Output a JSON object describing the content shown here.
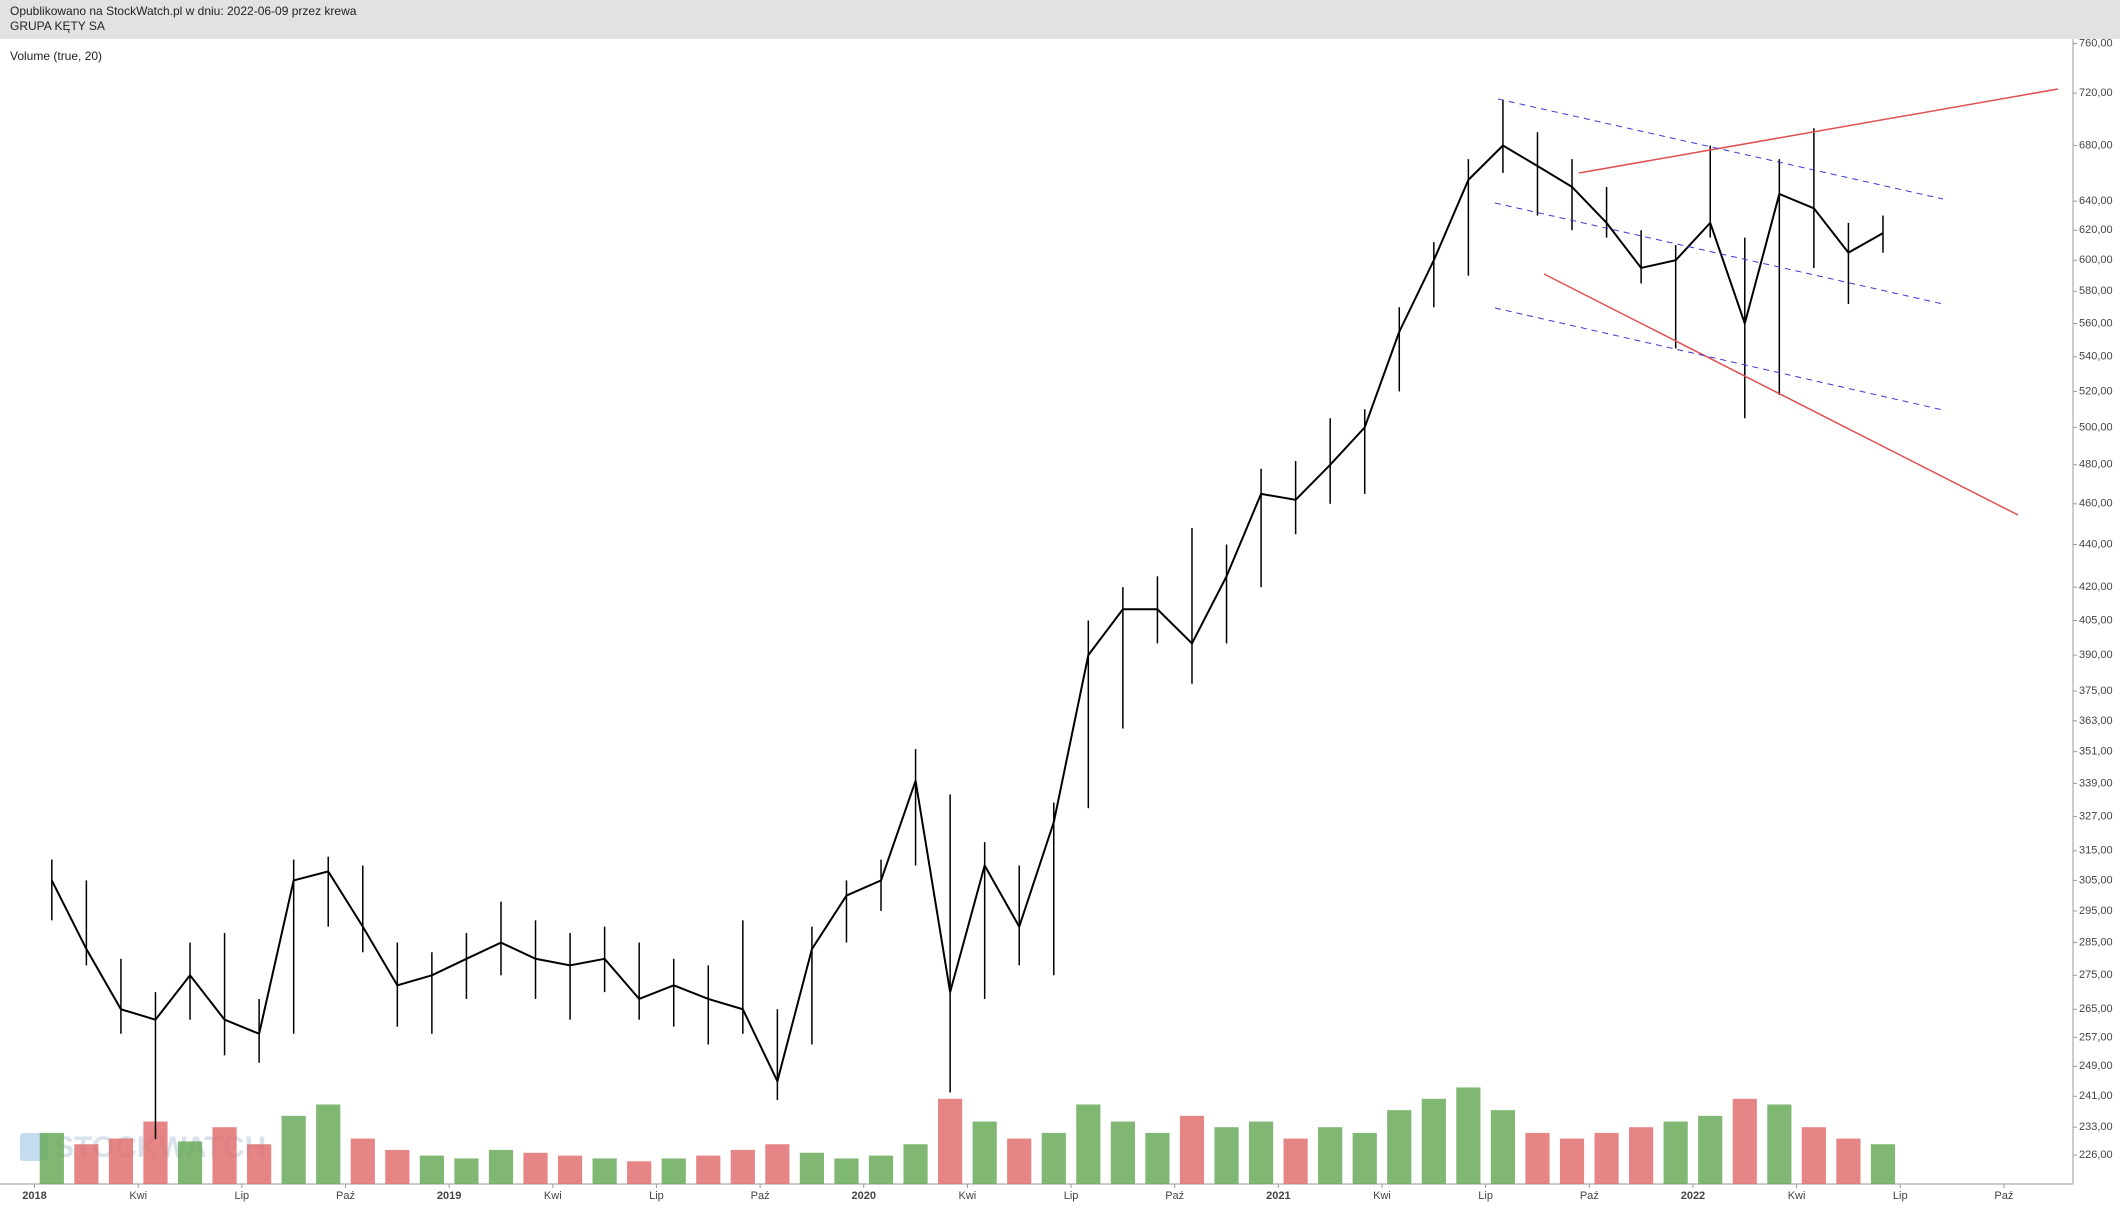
{
  "header": {
    "published": "Opublikowano na StockWatch.pl w dniu: 2022-06-09 przez krewa"
  },
  "chart_data": {
    "type": "ohlc-line",
    "title": "GRUPA KĘTY SA",
    "indicator": "Volume (true, 20)",
    "watermark": "STOCKWATCH",
    "log_scale": true,
    "x": [
      "2018-01",
      "2018-02",
      "2018-03",
      "2018-04",
      "2018-05",
      "2018-06",
      "2018-07",
      "2018-08",
      "2018-09",
      "2018-10",
      "2018-11",
      "2018-12",
      "2019-01",
      "2019-02",
      "2019-03",
      "2019-04",
      "2019-05",
      "2019-06",
      "2019-07",
      "2019-08",
      "2019-09",
      "2019-10",
      "2019-11",
      "2019-12",
      "2020-01",
      "2020-02",
      "2020-03",
      "2020-04",
      "2020-05",
      "2020-06",
      "2020-07",
      "2020-08",
      "2020-09",
      "2020-10",
      "2020-11",
      "2020-12",
      "2021-01",
      "2021-02",
      "2021-03",
      "2021-04",
      "2021-05",
      "2021-06",
      "2021-07",
      "2021-08",
      "2021-09",
      "2021-10",
      "2021-11",
      "2021-12",
      "2022-01",
      "2022-02",
      "2022-03",
      "2022-04",
      "2022-05",
      "2022-06"
    ],
    "values": [
      305,
      283,
      265,
      262,
      275,
      262,
      258,
      305,
      308,
      290,
      272,
      275,
      280,
      285,
      280,
      278,
      280,
      268,
      272,
      268,
      265,
      245,
      283,
      300,
      305,
      340,
      270,
      310,
      290,
      325,
      390,
      410,
      410,
      395,
      425,
      465,
      462,
      480,
      500,
      555,
      600,
      655,
      680,
      665,
      650,
      625,
      595,
      600,
      625,
      560,
      645,
      635,
      605,
      618
    ],
    "high": [
      312,
      305,
      280,
      270,
      285,
      288,
      268,
      312,
      313,
      310,
      285,
      282,
      288,
      298,
      292,
      288,
      290,
      285,
      280,
      278,
      292,
      265,
      290,
      305,
      312,
      352,
      335,
      318,
      310,
      332,
      405,
      420,
      425,
      448,
      440,
      478,
      482,
      505,
      510,
      570,
      612,
      670,
      715,
      690,
      670,
      650,
      620,
      610,
      680,
      615,
      670,
      693,
      625,
      630
    ],
    "low": [
      292,
      278,
      258,
      230,
      262,
      252,
      250,
      258,
      290,
      282,
      260,
      258,
      268,
      275,
      268,
      262,
      270,
      262,
      260,
      255,
      258,
      240,
      255,
      285,
      295,
      310,
      242,
      268,
      278,
      275,
      330,
      360,
      395,
      378,
      395,
      420,
      445,
      460,
      465,
      520,
      570,
      590,
      660,
      630,
      620,
      615,
      585,
      545,
      615,
      505,
      518,
      595,
      572,
      605
    ],
    "volume": [
      18,
      14,
      16,
      22,
      15,
      20,
      14,
      24,
      28,
      16,
      12,
      10,
      9,
      12,
      11,
      10,
      9,
      8,
      9,
      10,
      12,
      14,
      11,
      9,
      10,
      14,
      30,
      22,
      16,
      18,
      28,
      22,
      18,
      24,
      20,
      22,
      16,
      20,
      18,
      26,
      30,
      34,
      26,
      18,
      16,
      18,
      20,
      22,
      24,
      30,
      28,
      20,
      16,
      14
    ],
    "volume_ylim": [
      0,
      100
    ],
    "color": "#000000",
    "volume_colors": {
      "up": "#6aaa5a",
      "down": "#e07070"
    },
    "xlim": [
      "2017-12",
      "2022-12"
    ],
    "xticks": [
      {
        "value": "2018-01",
        "label": "2018"
      },
      {
        "value": "2018-04",
        "label": "Kwi"
      },
      {
        "value": "2018-07",
        "label": "Lip"
      },
      {
        "value": "2018-10",
        "label": "Paź"
      },
      {
        "value": "2019-01",
        "label": "2019"
      },
      {
        "value": "2019-04",
        "label": "Kwi"
      },
      {
        "value": "2019-07",
        "label": "Lip"
      },
      {
        "value": "2019-10",
        "label": "Paź"
      },
      {
        "value": "2020-01",
        "label": "2020"
      },
      {
        "value": "2020-04",
        "label": "Kwi"
      },
      {
        "value": "2020-07",
        "label": "Lip"
      },
      {
        "value": "2020-10",
        "label": "Paź"
      },
      {
        "value": "2021-01",
        "label": "2021"
      },
      {
        "value": "2021-04",
        "label": "Kwi"
      },
      {
        "value": "2021-07",
        "label": "Lip"
      },
      {
        "value": "2021-10",
        "label": "Paź"
      },
      {
        "value": "2022-01",
        "label": "2022"
      },
      {
        "value": "2022-04",
        "label": "Kwi"
      },
      {
        "value": "2022-07",
        "label": "Lip"
      },
      {
        "value": "2022-10",
        "label": "Paź"
      }
    ],
    "ylim": [
      219,
      763
    ],
    "yticks": [
      {
        "value": 760,
        "label": "760,00"
      },
      {
        "value": 720,
        "label": "720,00"
      },
      {
        "value": 680,
        "label": "680,00"
      },
      {
        "value": 640,
        "label": "640,00"
      },
      {
        "value": 620,
        "label": "620,00"
      },
      {
        "value": 600,
        "label": "600,00"
      },
      {
        "value": 580,
        "label": "580,00"
      },
      {
        "value": 560,
        "label": "560,00"
      },
      {
        "value": 540,
        "label": "540,00"
      },
      {
        "value": 520,
        "label": "520,00"
      },
      {
        "value": 500,
        "label": "500,00"
      },
      {
        "value": 480,
        "label": "480,00"
      },
      {
        "value": 460,
        "label": "460,00"
      },
      {
        "value": 440,
        "label": "440,00"
      },
      {
        "value": 420,
        "label": "420,00"
      },
      {
        "value": 405,
        "label": "405,00"
      },
      {
        "value": 390,
        "label": "390,00"
      },
      {
        "value": 375,
        "label": "375,00"
      },
      {
        "value": 363,
        "label": "363,00"
      },
      {
        "value": 351,
        "label": "351,00"
      },
      {
        "value": 339,
        "label": "339,00"
      },
      {
        "value": 327,
        "label": "327,00"
      },
      {
        "value": 315,
        "label": "315,00"
      },
      {
        "value": 305,
        "label": "305,00"
      },
      {
        "value": 295,
        "label": "295,00"
      },
      {
        "value": 285,
        "label": "285,00"
      },
      {
        "value": 275,
        "label": "275,00"
      },
      {
        "value": 265,
        "label": "265,00"
      },
      {
        "value": 257,
        "label": "257,00"
      },
      {
        "value": 249,
        "label": "249,00"
      },
      {
        "value": 241,
        "label": "241,00"
      },
      {
        "value": 233,
        "label": "233,00"
      },
      {
        "value": 226,
        "label": "226,00"
      }
    ]
  }
}
